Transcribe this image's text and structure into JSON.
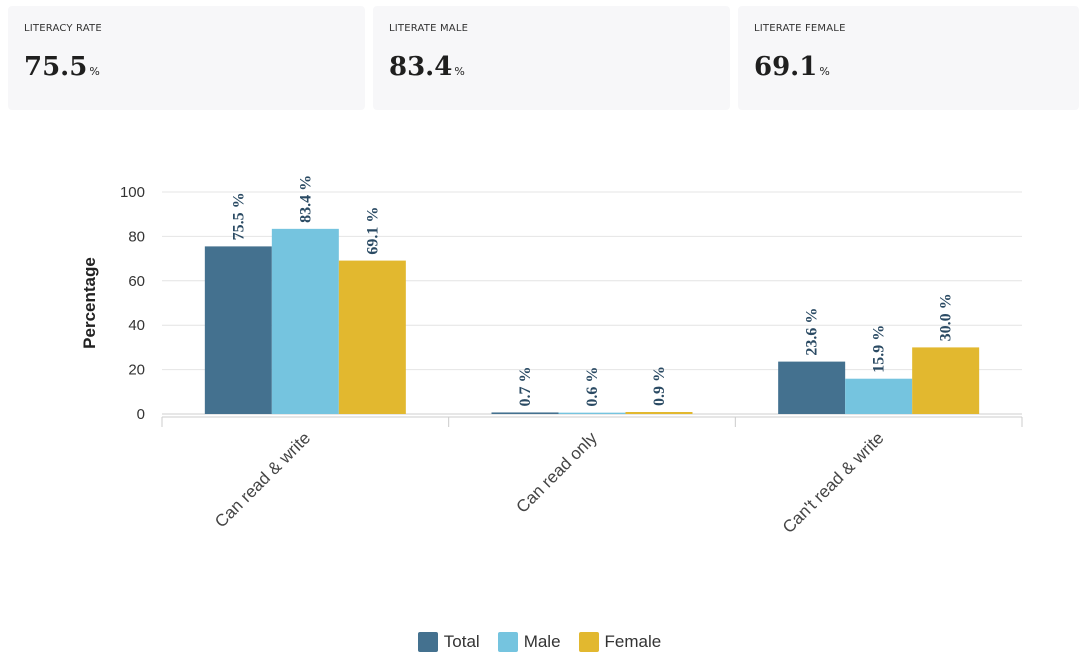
{
  "stats": [
    {
      "label": "LITERACY RATE",
      "value": "75.5",
      "unit": "%"
    },
    {
      "label": "LITERATE MALE",
      "value": "83.4",
      "unit": "%"
    },
    {
      "label": "LITERATE FEMALE",
      "value": "69.1",
      "unit": "%"
    }
  ],
  "chart_data": {
    "type": "bar",
    "categories": [
      "Can read & write",
      "Can read only",
      "Can't read & write"
    ],
    "series": [
      {
        "name": "Total",
        "values": [
          75.5,
          0.7,
          23.6
        ],
        "labels": [
          "75.5 %",
          "0.7 %",
          "23.6 %"
        ],
        "color": "#44718f"
      },
      {
        "name": "Male",
        "values": [
          83.4,
          0.6,
          15.9
        ],
        "labels": [
          "83.4 %",
          "0.6 %",
          "15.9 %"
        ],
        "color": "#75c4df"
      },
      {
        "name": "Female",
        "values": [
          69.1,
          0.9,
          30.0
        ],
        "labels": [
          "69.1 %",
          "0.9 %",
          "30.0 %"
        ],
        "color": "#e2b82f"
      }
    ],
    "ylabel": "Percentage",
    "ylim": [
      0,
      100
    ],
    "yticks": [
      0,
      20,
      40,
      60,
      80,
      100
    ],
    "grid": true,
    "legend_position": "bottom"
  }
}
